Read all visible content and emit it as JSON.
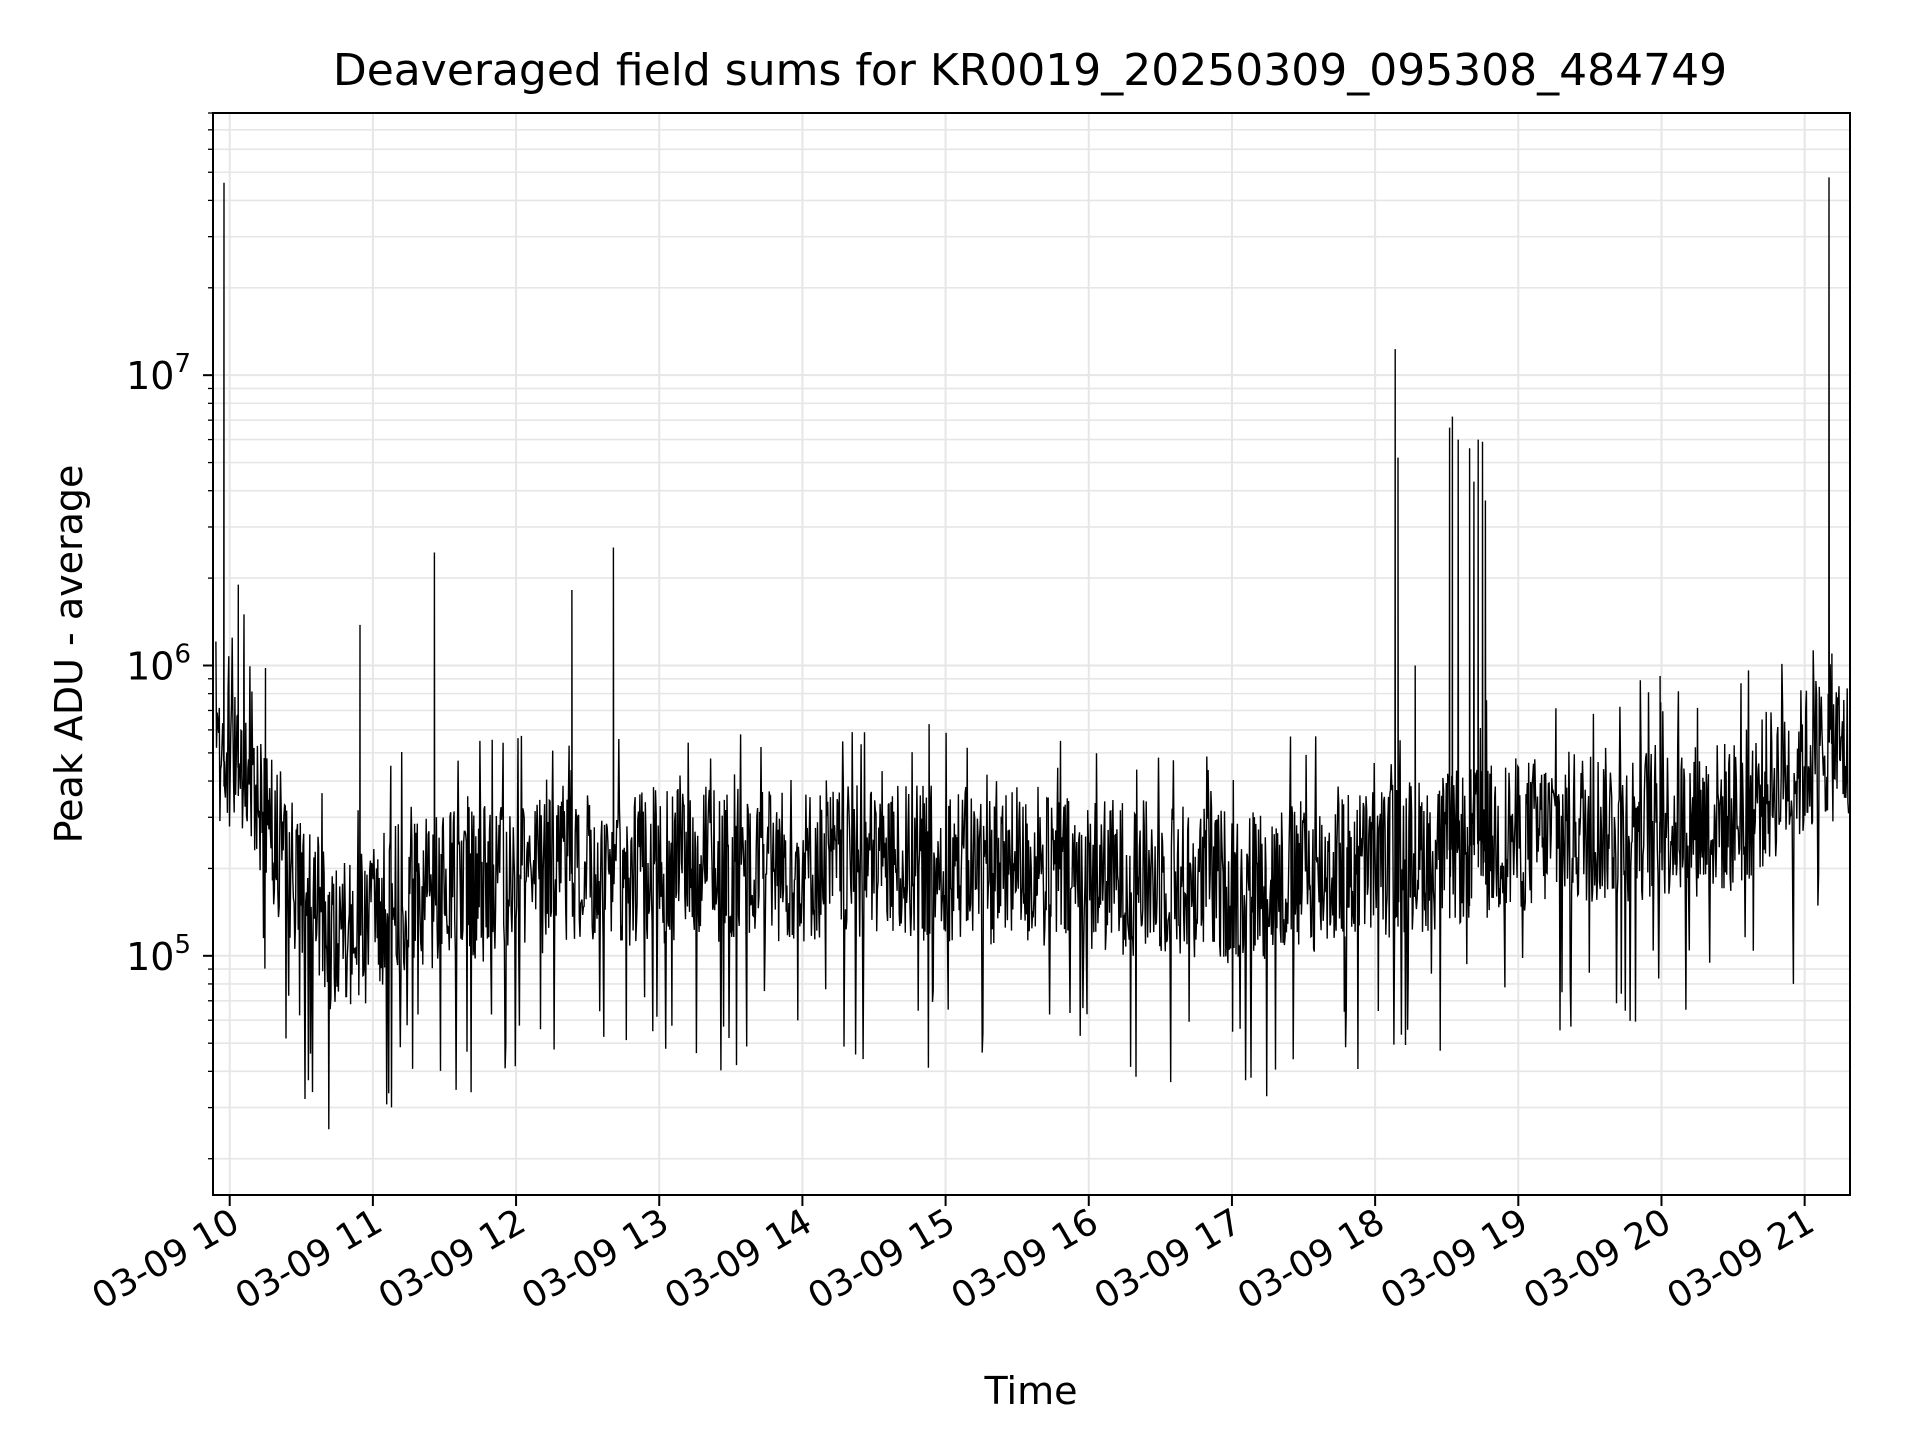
{
  "chart_data": {
    "type": "line",
    "title": "Deaveraged field sums for KR0019_20250309_095308_484749",
    "xlabel": "Time",
    "ylabel": "Peak ADU - average",
    "yscale": "log",
    "xlim": [
      "2025-03-09 09:53",
      "2025-03-09 21:19"
    ],
    "ylim": [
      15000,
      80000000
    ],
    "grid": true,
    "grid_color": "#e6e6e6",
    "line_color": "#000000",
    "x_ticks": [
      "03-09 10",
      "03-09 11",
      "03-09 12",
      "03-09 13",
      "03-09 14",
      "03-09 15",
      "03-09 16",
      "03-09 17",
      "03-09 18",
      "03-09 19",
      "03-09 20",
      "03-09 21"
    ],
    "x_tick_hours": [
      10,
      11,
      12,
      13,
      14,
      15,
      16,
      17,
      18,
      19,
      20,
      21
    ],
    "y_ticks": [
      {
        "value": 100000,
        "base": "10",
        "exp": "5"
      },
      {
        "value": 1000000,
        "base": "10",
        "exp": "6"
      },
      {
        "value": 10000000,
        "base": "10",
        "exp": "7"
      }
    ],
    "series": [
      {
        "baseline_hours": [
          9.9,
          10.0,
          10.1,
          10.3,
          10.5,
          10.7,
          10.9,
          11.2,
          11.6,
          12.0,
          12.5,
          13.0,
          14.0,
          15.0,
          15.5,
          16.0,
          16.5,
          17.0,
          17.5,
          18.0,
          18.5,
          19.0,
          19.5,
          20.0,
          20.5,
          20.8,
          21.0,
          21.15,
          21.3
        ],
        "baseline_values": [
          450000,
          480000,
          420000,
          260000,
          180000,
          120000,
          120000,
          160000,
          175000,
          180000,
          195000,
          205000,
          205000,
          210000,
          195000,
          190000,
          185000,
          175000,
          185000,
          210000,
          230000,
          260000,
          280000,
          290000,
          300000,
          400000,
          460000,
          550000,
          500000
        ],
        "peaks": [
          {
            "hour": 9.96,
            "value": 46000000
          },
          {
            "hour": 10.06,
            "value": 1900000
          },
          {
            "hour": 10.1,
            "value": 1500000
          },
          {
            "hour": 10.25,
            "value": 980000
          },
          {
            "hour": 10.91,
            "value": 1380000
          },
          {
            "hour": 11.43,
            "value": 2450000
          },
          {
            "hour": 12.39,
            "value": 1820000
          },
          {
            "hour": 12.68,
            "value": 2550000
          },
          {
            "hour": 18.14,
            "value": 12300000
          },
          {
            "hour": 18.16,
            "value": 5200000
          },
          {
            "hour": 18.28,
            "value": 1000000
          },
          {
            "hour": 18.52,
            "value": 6600000
          },
          {
            "hour": 18.54,
            "value": 7200000
          },
          {
            "hour": 18.58,
            "value": 6000000
          },
          {
            "hour": 18.66,
            "value": 5600000
          },
          {
            "hour": 18.69,
            "value": 4300000
          },
          {
            "hour": 18.72,
            "value": 6000000
          },
          {
            "hour": 18.75,
            "value": 5900000
          },
          {
            "hour": 18.77,
            "value": 3700000
          },
          {
            "hour": 19.99,
            "value": 920000
          },
          {
            "hour": 21.17,
            "value": 48000000
          },
          {
            "hour": 21.19,
            "value": 1100000
          }
        ]
      }
    ]
  }
}
